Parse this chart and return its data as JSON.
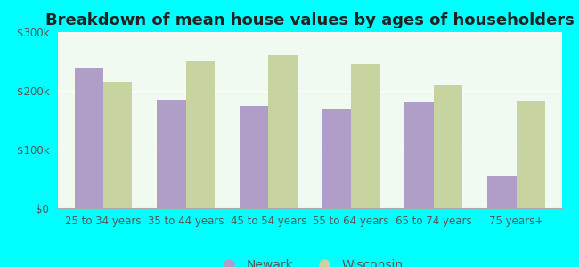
{
  "title": "Breakdown of mean house values by ages of householders",
  "categories": [
    "25 to 34 years",
    "35 to 44 years",
    "45 to 54 years",
    "55 to 64 years",
    "65 to 74 years",
    "75 years+"
  ],
  "newark_values": [
    240000,
    185000,
    175000,
    170000,
    180000,
    55000
  ],
  "wisconsin_values": [
    215000,
    250000,
    260000,
    245000,
    210000,
    183000
  ],
  "newark_color": "#b09ec9",
  "wisconsin_color": "#c8d4a0",
  "ylim": [
    0,
    300000
  ],
  "yticks": [
    0,
    100000,
    200000,
    300000
  ],
  "ytick_labels": [
    "$0",
    "$100k",
    "$200k",
    "$300k"
  ],
  "legend_newark": "Newark",
  "legend_wisconsin": "Wisconsin",
  "outer_bg": "#00ffff",
  "plot_bg": "#e8f5e0",
  "title_fontsize": 13,
  "tick_fontsize": 8.5,
  "legend_fontsize": 10,
  "axis_text_color": "#555555",
  "title_color": "#222222"
}
